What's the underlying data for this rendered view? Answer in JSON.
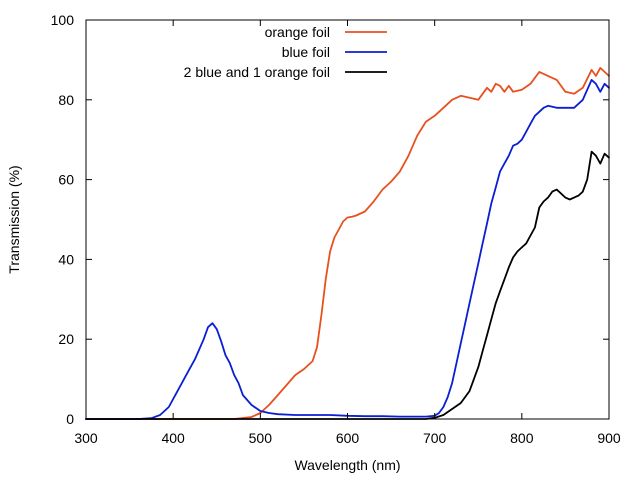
{
  "chart_data": {
    "type": "line",
    "title": "",
    "xlabel": "Wavelength (nm)",
    "ylabel": "Transmission (%)",
    "xlim": [
      300,
      900
    ],
    "ylim": [
      0,
      100
    ],
    "xticks": [
      300,
      400,
      500,
      600,
      700,
      800,
      900
    ],
    "yticks": [
      0,
      20,
      40,
      60,
      80,
      100
    ],
    "grid": false,
    "legend_position": "top-right",
    "series": [
      {
        "name": "orange foil",
        "color": "#e8501e",
        "x": [
          300,
          380,
          470,
          490,
          500,
          510,
          520,
          530,
          540,
          550,
          560,
          565,
          570,
          575,
          580,
          585,
          590,
          595,
          600,
          605,
          610,
          620,
          630,
          640,
          650,
          660,
          670,
          680,
          690,
          700,
          710,
          720,
          730,
          740,
          750,
          760,
          765,
          770,
          775,
          780,
          785,
          790,
          800,
          810,
          820,
          830,
          840,
          850,
          860,
          870,
          880,
          885,
          890,
          895,
          900
        ],
        "y": [
          0,
          0,
          0,
          0.5,
          1.5,
          3.5,
          6,
          8.5,
          11,
          12.5,
          14.5,
          18,
          26,
          35,
          42,
          45.5,
          47.5,
          49.5,
          50.5,
          50.7,
          51,
          52,
          54.5,
          57.5,
          59.5,
          62,
          66,
          71,
          74.5,
          76,
          78,
          80,
          81,
          80.5,
          80,
          83,
          82,
          84,
          83.5,
          82,
          83.5,
          82,
          82.5,
          84,
          87,
          86,
          85,
          82,
          81.5,
          83,
          87.5,
          86,
          88,
          87,
          86
        ]
      },
      {
        "name": "blue foil",
        "color": "#0a1ed2",
        "x": [
          300,
          360,
          375,
          385,
          395,
          405,
          415,
          425,
          435,
          440,
          445,
          450,
          455,
          460,
          465,
          470,
          475,
          480,
          490,
          500,
          510,
          520,
          540,
          560,
          580,
          600,
          620,
          640,
          660,
          680,
          690,
          700,
          705,
          710,
          715,
          720,
          725,
          730,
          735,
          740,
          745,
          750,
          755,
          760,
          765,
          770,
          775,
          780,
          785,
          790,
          795,
          800,
          805,
          810,
          815,
          820,
          825,
          830,
          840,
          850,
          860,
          870,
          880,
          885,
          890,
          895,
          900
        ],
        "y": [
          0,
          0,
          0.2,
          1,
          3,
          7,
          11,
          15,
          20,
          23,
          24,
          22.5,
          19.5,
          16,
          14,
          11,
          9,
          6,
          3.5,
          2,
          1.5,
          1.2,
          1,
          1,
          1,
          0.8,
          0.7,
          0.7,
          0.6,
          0.6,
          0.6,
          0.8,
          1.5,
          3,
          5.5,
          9,
          14,
          19,
          24,
          29,
          34,
          39,
          44,
          49,
          54,
          58,
          62,
          64,
          66,
          68.5,
          69,
          70,
          72,
          74,
          76,
          77,
          78,
          78.5,
          78,
          78,
          78,
          80,
          85,
          84,
          82,
          84,
          83
        ]
      },
      {
        "name": "2 blue and 1 orange foil",
        "color": "#000000",
        "x": [
          300,
          690,
          700,
          710,
          720,
          730,
          740,
          745,
          750,
          755,
          760,
          765,
          770,
          775,
          780,
          785,
          790,
          795,
          800,
          805,
          810,
          815,
          820,
          825,
          830,
          835,
          840,
          845,
          850,
          855,
          860,
          865,
          870,
          875,
          880,
          885,
          890,
          895,
          900
        ],
        "y": [
          0,
          0,
          0.3,
          1,
          2.5,
          4,
          7,
          10,
          13,
          17,
          21,
          25,
          29,
          32,
          35,
          38,
          40.5,
          42,
          43,
          44,
          46,
          48,
          53,
          54.5,
          55.5,
          57,
          57.5,
          56.5,
          55.5,
          55,
          55.5,
          56,
          57,
          60,
          67,
          66,
          64,
          66.5,
          65.5
        ]
      }
    ]
  }
}
